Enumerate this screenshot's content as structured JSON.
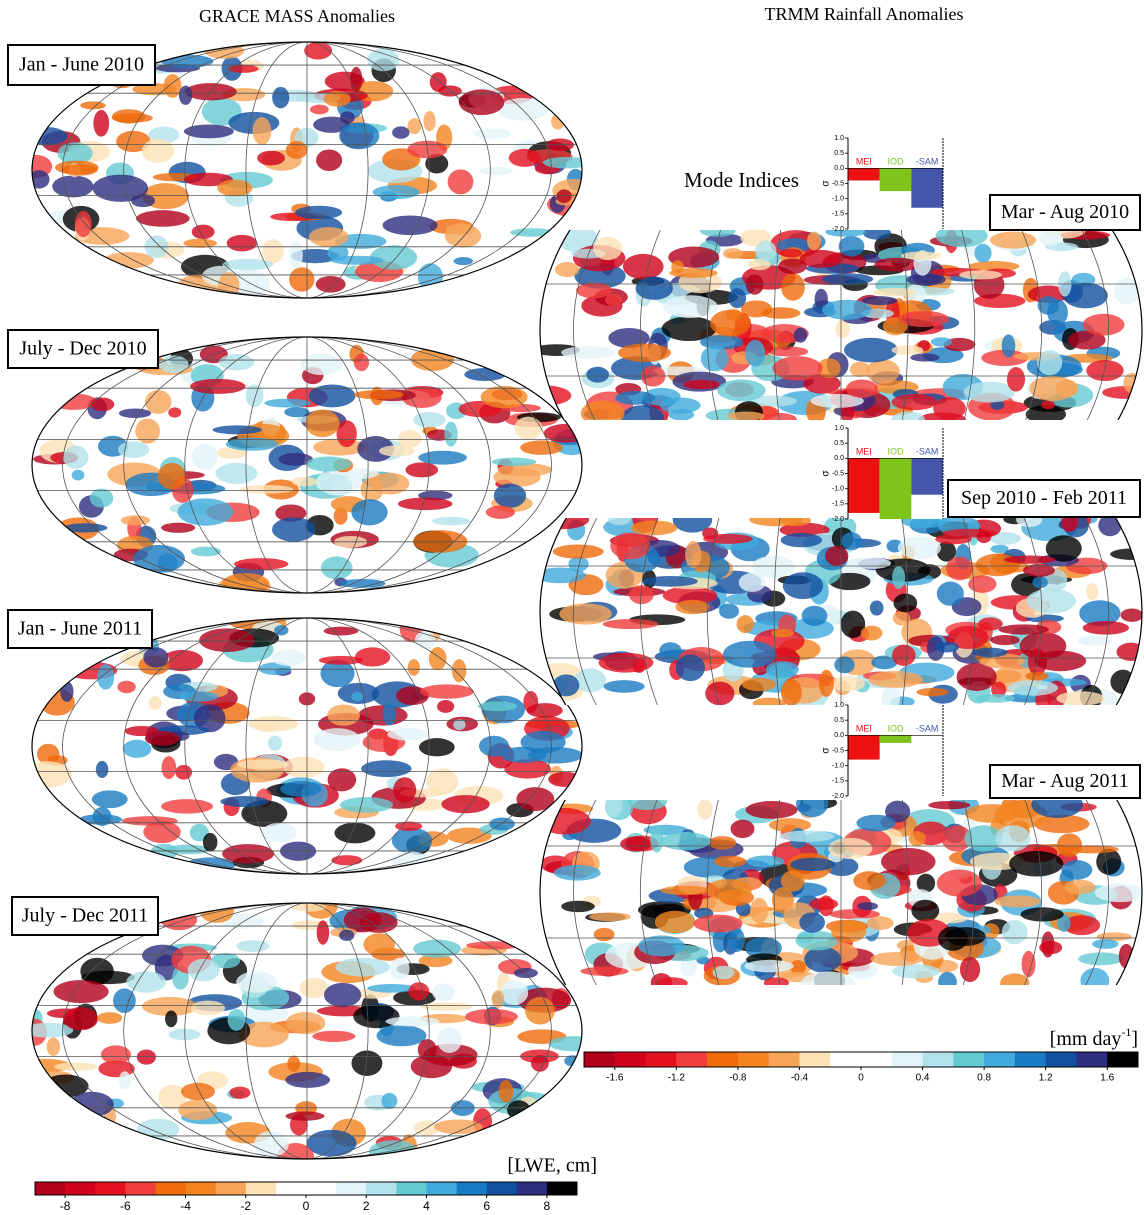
{
  "titles": {
    "grace": "GRACE MASS Anomalies",
    "trmm": "TRMM Rainfall Anomalies"
  },
  "grace_panels": [
    "Jan - June 2010",
    "July - Dec 2010",
    "Jan - June 2011",
    "July - Dec 2011"
  ],
  "trmm_panels": [
    "Mar - Aug 2010",
    "Sep 2010 - Feb 2011",
    "Mar - Aug 2011"
  ],
  "mode_indices_label": "Mode Indices",
  "grace_colorbar": {
    "unit": "[LWE, cm]",
    "range": [
      -9,
      9
    ],
    "ticks": [
      -8,
      -6,
      -4,
      -2,
      0,
      2,
      4,
      6,
      8
    ],
    "colors": [
      "#b0001a",
      "#d0021c",
      "#e41020",
      "#f03c3c",
      "#ee6a0a",
      "#f38420",
      "#f8a458",
      "#fde2b6",
      "#ffffff",
      "#ffffff",
      "#e2f4f8",
      "#b2e2ea",
      "#64cad2",
      "#40aadc",
      "#1a7ac2",
      "#1250a0",
      "#2e2e80",
      "#000000"
    ]
  },
  "trmm_colorbar": {
    "unit_prefix": "[mm day",
    "unit_sup": "-1",
    "unit_suffix": "]",
    "range": [
      -1.8,
      1.8
    ],
    "ticks": [
      -1.6,
      -1.2,
      -0.8,
      -0.4,
      0,
      0.4,
      0.8,
      1.2,
      1.6
    ],
    "colors": [
      "#b0001a",
      "#d0021c",
      "#e41020",
      "#f03c3c",
      "#ee6a0a",
      "#f38420",
      "#f8a458",
      "#fde2b6",
      "#ffffff",
      "#ffffff",
      "#e2f4f8",
      "#b2e2ea",
      "#64cad2",
      "#40aadc",
      "#1a7ac2",
      "#1250a0",
      "#2e2e80",
      "#000000"
    ]
  },
  "chart_data": [
    {
      "type": "bar",
      "ylabel": "σ",
      "categories": [
        "MEI",
        "IOD",
        "-SAM"
      ],
      "values": [
        -0.4,
        -0.75,
        -1.3
      ],
      "colors": [
        "#ee1111",
        "#7fc41a",
        "#4455aa"
      ],
      "ylim": [
        -2,
        1
      ],
      "yticks": [
        {
          "value": 1,
          "label": "1.0"
        },
        0.5,
        {
          "value": 0,
          "label": "0.0"
        },
        -0.5,
        {
          "value": -1,
          "label": "-1.0"
        },
        -1.5,
        {
          "value": -2,
          "label": "-2.0"
        }
      ]
    },
    {
      "type": "bar",
      "ylabel": "σ",
      "categories": [
        "MEI",
        "IOD",
        "-SAM"
      ],
      "values": [
        -1.8,
        -2.0,
        -1.2
      ],
      "colors": [
        "#ee1111",
        "#7fc41a",
        "#4455aa"
      ],
      "ylim": [
        -2,
        1
      ],
      "yticks": [
        {
          "value": 1,
          "label": "1.0"
        },
        0.5,
        {
          "value": 0,
          "label": "0.0"
        },
        -0.5,
        {
          "value": -1,
          "label": "-1.0"
        },
        -1.5,
        {
          "value": -2,
          "label": "-2.0"
        }
      ]
    },
    {
      "type": "bar",
      "ylabel": "σ",
      "categories": [
        "MEI",
        "IOD",
        "-SAM"
      ],
      "values": [
        -0.8,
        -0.25,
        0
      ],
      "colors": [
        "#ee1111",
        "#7fc41a",
        "#4455aa"
      ],
      "ylim": [
        -2,
        1
      ],
      "yticks": [
        {
          "value": 1,
          "label": "1.0"
        },
        0.5,
        {
          "value": 0,
          "label": "0.0"
        },
        -0.5,
        {
          "value": -1,
          "label": "-1.0"
        },
        -1.5,
        {
          "value": -2,
          "label": "-2.0"
        }
      ]
    }
  ]
}
